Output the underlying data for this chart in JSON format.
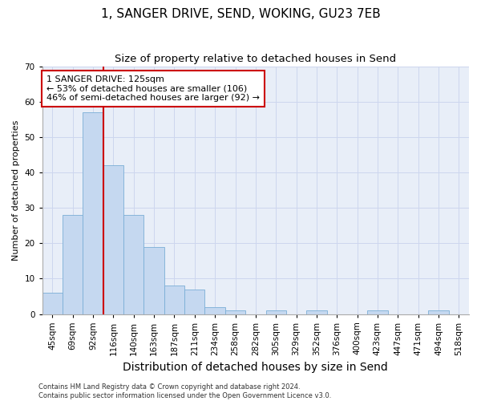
{
  "title": "1, SANGER DRIVE, SEND, WOKING, GU23 7EB",
  "subtitle": "Size of property relative to detached houses in Send",
  "xlabel": "Distribution of detached houses by size in Send",
  "ylabel": "Number of detached properties",
  "bar_color": "#c5d8f0",
  "bar_edge_color": "#7aaed6",
  "background_color": "#e8eef8",
  "categories": [
    "45sqm",
    "69sqm",
    "92sqm",
    "116sqm",
    "140sqm",
    "163sqm",
    "187sqm",
    "211sqm",
    "234sqm",
    "258sqm",
    "282sqm",
    "305sqm",
    "329sqm",
    "352sqm",
    "376sqm",
    "400sqm",
    "423sqm",
    "447sqm",
    "471sqm",
    "494sqm",
    "518sqm"
  ],
  "values": [
    6,
    28,
    57,
    42,
    28,
    19,
    8,
    7,
    2,
    1,
    0,
    1,
    0,
    1,
    0,
    0,
    1,
    0,
    0,
    1,
    0
  ],
  "vline_index": 3,
  "vline_color": "#cc0000",
  "annotation_text": "1 SANGER DRIVE: 125sqm\n← 53% of detached houses are smaller (106)\n46% of semi-detached houses are larger (92) →",
  "annotation_box_color": "#ffffff",
  "annotation_box_edge": "#cc0000",
  "ylim": [
    0,
    70
  ],
  "yticks": [
    0,
    10,
    20,
    30,
    40,
    50,
    60,
    70
  ],
  "footer": "Contains HM Land Registry data © Crown copyright and database right 2024.\nContains public sector information licensed under the Open Government Licence v3.0.",
  "grid_color": "#cdd6ee",
  "title_fontsize": 11,
  "subtitle_fontsize": 9.5,
  "xlabel_fontsize": 10,
  "ylabel_fontsize": 8,
  "tick_fontsize": 7.5,
  "annotation_fontsize": 8,
  "footer_fontsize": 6
}
